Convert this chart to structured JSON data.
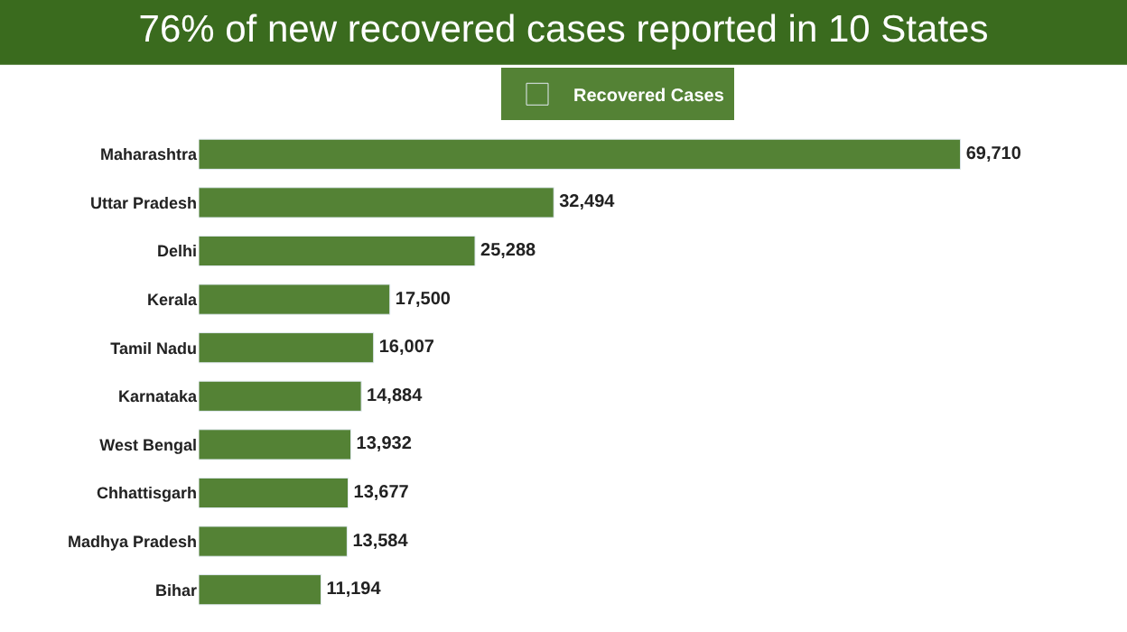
{
  "chart_data": {
    "type": "bar",
    "orientation": "horizontal",
    "title": "76% of new recovered cases reported in 10 States",
    "categories": [
      "Maharashtra",
      "Uttar Pradesh",
      "Delhi",
      "Kerala",
      "Tamil Nadu",
      "Karnataka",
      "West Bengal",
      "Chhattisgarh",
      "Madhya Pradesh",
      "Bihar"
    ],
    "series": [
      {
        "name": "Recovered Cases",
        "color": "#548235",
        "values": [
          69710,
          32494,
          25288,
          17500,
          16007,
          14884,
          13932,
          13677,
          13584,
          11194
        ],
        "value_labels": [
          "69,710",
          "32,494",
          "25,288",
          "17,500",
          "16,007",
          "14,884",
          "13,932",
          "13,677",
          "13,584",
          "11,194"
        ]
      }
    ],
    "legend": "top",
    "tick_labels": "y"
  }
}
